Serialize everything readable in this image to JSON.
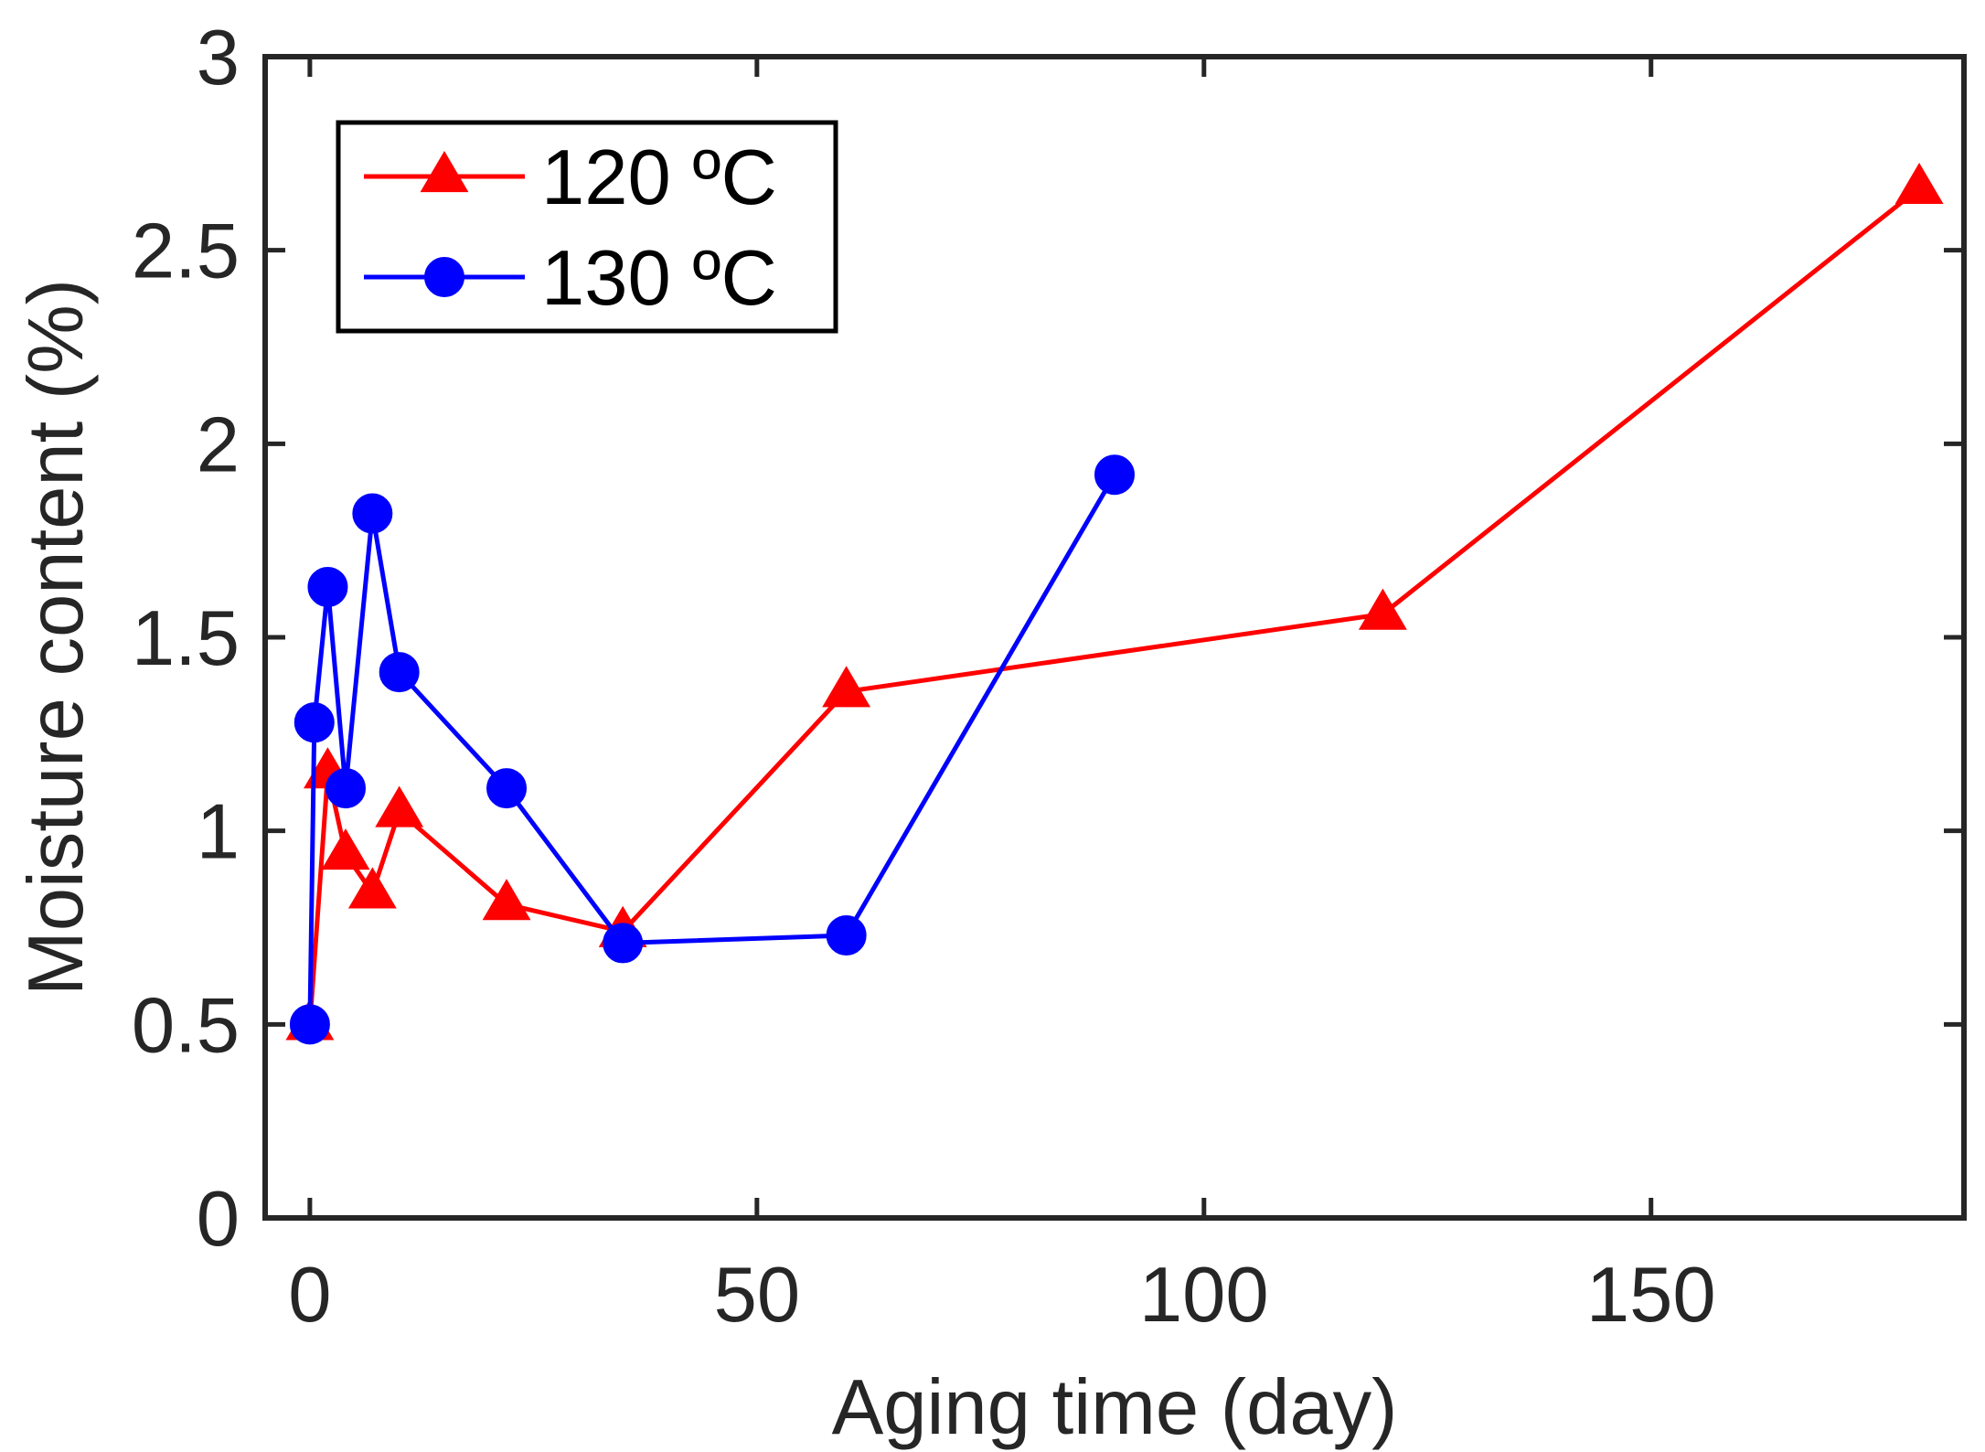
{
  "chart_data": {
    "type": "line",
    "title": "",
    "xlabel": "Aging time (day)",
    "ylabel": "Moisture content (%)",
    "xlim": [
      -5,
      185
    ],
    "ylim": [
      0,
      3
    ],
    "xticks": [
      0,
      50,
      100,
      150
    ],
    "xtick_labels": [
      "0",
      "50",
      "100",
      "150"
    ],
    "yticks": [
      0,
      0.5,
      1,
      1.5,
      2,
      2.5,
      3
    ],
    "ytick_labels": [
      "0",
      "0.5",
      "1",
      "1.5",
      "2",
      "2.5",
      "3"
    ],
    "grid": false,
    "legend_position": "top-left",
    "series": [
      {
        "name": "120 ºC",
        "color": "#ff0000",
        "marker": "triangle",
        "x": [
          0,
          2,
          4,
          7,
          10,
          22,
          35,
          60,
          120,
          180
        ],
        "y": [
          0.5,
          1.15,
          0.94,
          0.84,
          1.05,
          0.81,
          0.74,
          1.36,
          1.56,
          2.66
        ]
      },
      {
        "name": "130 ºC",
        "color": "#0000ff",
        "marker": "circle",
        "x": [
          0,
          0.5,
          2,
          4,
          7,
          10,
          22,
          35,
          60,
          90
        ],
        "y": [
          0.5,
          1.28,
          1.63,
          1.11,
          1.82,
          1.41,
          1.11,
          0.71,
          0.73,
          1.92
        ]
      }
    ]
  }
}
